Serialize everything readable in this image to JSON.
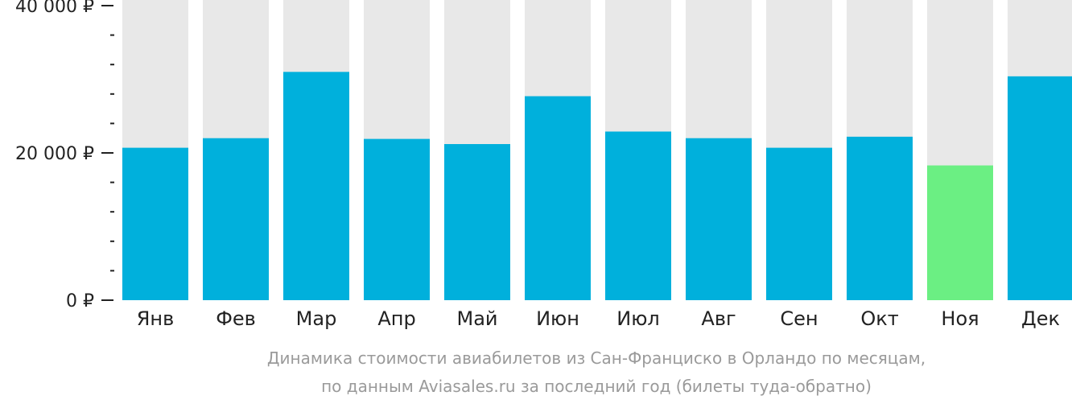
{
  "chart_data": {
    "type": "bar",
    "categories": [
      "Янв",
      "Фев",
      "Мар",
      "Апр",
      "Май",
      "Июн",
      "Июл",
      "Авг",
      "Сен",
      "Окт",
      "Ноя",
      "Дек"
    ],
    "values": [
      20700,
      22000,
      31000,
      21900,
      21200,
      27700,
      22900,
      22000,
      20700,
      22200,
      18300,
      30400
    ],
    "highlight_index": 10,
    "ylim": [
      0,
      40000
    ],
    "yticks": [
      {
        "value": 0,
        "label": "0 ₽"
      },
      {
        "value": 20000,
        "label": "20 000 ₽"
      },
      {
        "value": 40000,
        "label": "40 000 ₽"
      }
    ],
    "minor_tick_step": 4000,
    "title": "",
    "xlabel": "",
    "ylabel": "",
    "grid": false,
    "legend": "none"
  },
  "caption": {
    "line1": "Динамика стоимости авиабилетов из Сан-Франциско в Орландо по месяцам,",
    "line2": "по данным Aviasales.ru за последний год (билеты туда-обратно)"
  },
  "colors": {
    "bar": "#00b0dc",
    "highlight": "#6bef83",
    "track": "#e8e8e8",
    "axis": "#222222",
    "text": "#222222",
    "caption": "#9a9a9a"
  }
}
